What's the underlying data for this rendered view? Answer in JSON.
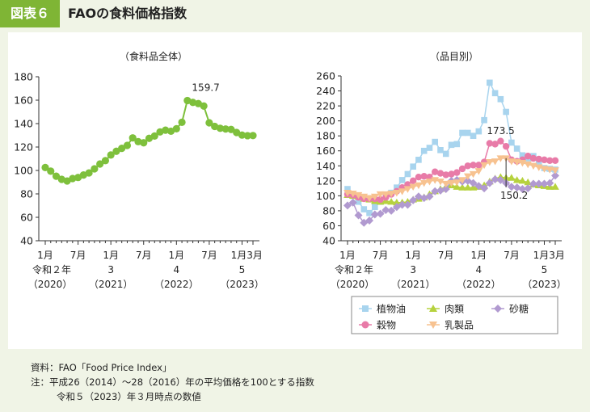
{
  "header": {
    "badge": "図表６",
    "title": "FAOの食料価格指数"
  },
  "chart_data": [
    {
      "type": "line",
      "title": "（食料品全体）",
      "ylim": [
        40,
        180
      ],
      "yticks": [
        40,
        60,
        80,
        100,
        120,
        140,
        160,
        180
      ],
      "tick_labels": {
        "months": [
          "1月",
          "7月",
          "1月",
          "7月",
          "1月",
          "7月",
          "1月3月"
        ],
        "years": [
          "令和２年",
          "3",
          "4",
          "5"
        ],
        "western_years": [
          "（2020）",
          "（2021）",
          "（2022）",
          "（2023）"
        ]
      },
      "annotations": [
        {
          "text": "159.7",
          "month_index": 27
        }
      ],
      "series": [
        {
          "color": "#7ec03c",
          "values": [
            102.5,
            99.4,
            95.1,
            92.4,
            91.0,
            93.1,
            94.0,
            96.1,
            97.9,
            101.4,
            105.5,
            108.4,
            113.2,
            116.4,
            118.9,
            121.4,
            127.8,
            124.6,
            123.6,
            127.4,
            129.4,
            132.9,
            134.4,
            133.5,
            135.6,
            141.1,
            159.7,
            158.1,
            157.1,
            155.0,
            140.7,
            137.6,
            136.0,
            135.4,
            135.0,
            132.4,
            130.2,
            129.7,
            129.8
          ]
        }
      ]
    },
    {
      "type": "line",
      "title": "（品目別）",
      "ylim": [
        40,
        260
      ],
      "yticks": [
        40,
        60,
        80,
        100,
        120,
        140,
        160,
        180,
        200,
        220,
        240,
        260
      ],
      "tick_labels": {
        "months": [
          "1月",
          "7月",
          "1月",
          "7月",
          "1月",
          "7月",
          "1月3月"
        ],
        "years": [
          "令和２年",
          "3",
          "4",
          "5"
        ],
        "western_years": [
          "（2020）",
          "（2021）",
          "（2022）",
          "（2023）"
        ]
      },
      "annotations": [
        {
          "text": "173.5",
          "month_index": 27
        },
        {
          "text": "150.2",
          "month_index": 29
        }
      ],
      "legend": {
        "placement": "bottom",
        "entries": [
          "植物油",
          "肉類",
          "砂糖",
          "穀物",
          "乳製品"
        ]
      },
      "series": [
        {
          "name": "植物油",
          "color": "#a8d4ee",
          "marker": "square",
          "values": [
            109,
            100,
            92,
            82,
            77,
            85,
            92,
            100,
            104,
            111,
            121,
            129,
            139,
            148,
            160,
            164,
            172,
            161,
            156,
            168,
            169,
            184,
            184,
            180,
            186,
            201,
            251,
            237,
            229,
            212,
            171,
            163,
            154,
            150,
            153,
            143,
            137,
            136,
            135
          ]
        },
        {
          "name": "肉類",
          "color": "#b6d23e",
          "marker": "triangle",
          "values": [
            101,
            100,
            99,
            96,
            95,
            93,
            92,
            93,
            92,
            91,
            91,
            92,
            95,
            96,
            98,
            102,
            106,
            109,
            112,
            114,
            112,
            111,
            111,
            111,
            112,
            114,
            119,
            123,
            125,
            124,
            124,
            121,
            120,
            118,
            115,
            114,
            113,
            112,
            112
          ]
        },
        {
          "name": "砂糖",
          "color": "#b19ad0",
          "marker": "diamond",
          "values": [
            87,
            91,
            74,
            64,
            67,
            75,
            76,
            81,
            80,
            85,
            88,
            88,
            94,
            99,
            97,
            99,
            106,
            107,
            109,
            120,
            121,
            119,
            120,
            117,
            113,
            110,
            117,
            122,
            121,
            117,
            112,
            111,
            109,
            110,
            116,
            116,
            116,
            117,
            127
          ]
        },
        {
          "name": "穀物",
          "color": "#e87ba8",
          "marker": "circle",
          "values": [
            102,
            101,
            98,
            96,
            96,
            96,
            95,
            98,
            102,
            106,
            111,
            115,
            120,
            125,
            126,
            125,
            132,
            130,
            128,
            129,
            131,
            136,
            140,
            141,
            141,
            145,
            170,
            169,
            173,
            166,
            148,
            146,
            148,
            153,
            150,
            149,
            148,
            147,
            147
          ]
        },
        {
          "name": "乳製品",
          "color": "#f7c290",
          "marker": "triangle-down",
          "values": [
            104,
            103,
            101,
            99,
            97,
            99,
            102,
            102,
            103,
            104,
            106,
            109,
            112,
            114,
            117,
            119,
            121,
            119,
            116,
            117,
            118,
            121,
            126,
            129,
            133,
            141,
            145,
            146,
            150,
            150,
            146,
            145,
            144,
            142,
            140,
            138,
            136,
            135,
            134
          ]
        }
      ]
    }
  ],
  "notes": {
    "source": "資料：FAO「Food Price Index」",
    "note1": "注：平成26（2014）～28（2016）年の平均価格を100とする指数",
    "note2": "令和５（2023）年３月時点の数値"
  }
}
